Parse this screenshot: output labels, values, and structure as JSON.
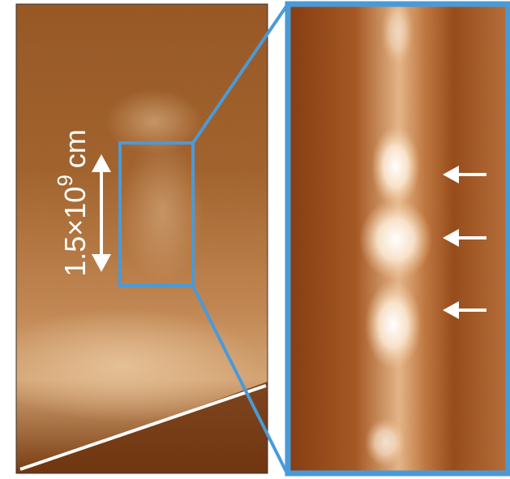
{
  "scale_bar": {
    "base": "1.5×10",
    "exponent": "9",
    "unit": "cm"
  }
}
